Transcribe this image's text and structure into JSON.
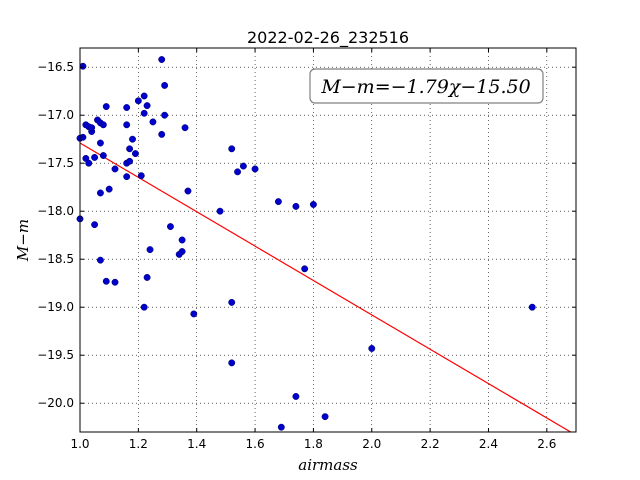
{
  "chart_data": {
    "type": "scatter",
    "title": "2022-02-26_232516",
    "xlabel": "airmass",
    "ylabel": "M−m",
    "xlim": [
      1.0,
      2.7
    ],
    "ylim": [
      -20.3,
      -16.3
    ],
    "xticks": [
      1.0,
      1.2,
      1.4,
      1.6,
      1.8,
      2.0,
      2.2,
      2.4,
      2.6
    ],
    "xtick_labels": [
      "1.0",
      "1.2",
      "1.4",
      "1.6",
      "1.8",
      "2.0",
      "2.2",
      "2.4",
      "2.6"
    ],
    "yticks": [
      -16.5,
      -17.0,
      -17.5,
      -18.0,
      -18.5,
      -19.0,
      -19.5,
      -20.0
    ],
    "ytick_labels": [
      "−16.5",
      "−17.0",
      "−17.5",
      "−18.0",
      "−18.5",
      "−19.0",
      "−19.5",
      "−20.0"
    ],
    "grid": true,
    "annotation": "M−m=−1.79χ−15.50",
    "fit": {
      "slope": -1.79,
      "intercept": -15.5,
      "color": "#ff0000"
    },
    "point_color": "#0000cc",
    "points": [
      [
        1.01,
        -16.49
      ],
      [
        1.0,
        -18.08
      ],
      [
        1.01,
        -17.23
      ],
      [
        1.0,
        -17.24
      ],
      [
        1.02,
        -17.1
      ],
      [
        1.03,
        -17.12
      ],
      [
        1.04,
        -17.17
      ],
      [
        1.04,
        -17.13
      ],
      [
        1.02,
        -17.45
      ],
      [
        1.03,
        -17.5
      ],
      [
        1.05,
        -17.44
      ],
      [
        1.05,
        -18.14
      ],
      [
        1.06,
        -17.05
      ],
      [
        1.07,
        -17.08
      ],
      [
        1.08,
        -17.1
      ],
      [
        1.07,
        -17.29
      ],
      [
        1.08,
        -17.42
      ],
      [
        1.07,
        -17.81
      ],
      [
        1.1,
        -17.77
      ],
      [
        1.12,
        -17.56
      ],
      [
        1.09,
        -16.91
      ],
      [
        1.07,
        -18.51
      ],
      [
        1.09,
        -18.73
      ],
      [
        1.12,
        -18.74
      ],
      [
        1.16,
        -16.92
      ],
      [
        1.16,
        -17.1
      ],
      [
        1.18,
        -17.25
      ],
      [
        1.17,
        -17.35
      ],
      [
        1.19,
        -17.4
      ],
      [
        1.16,
        -17.5
      ],
      [
        1.17,
        -17.48
      ],
      [
        1.16,
        -17.64
      ],
      [
        1.2,
        -16.85
      ],
      [
        1.22,
        -16.8
      ],
      [
        1.23,
        -16.9
      ],
      [
        1.22,
        -16.98
      ],
      [
        1.25,
        -17.07
      ],
      [
        1.21,
        -17.63
      ],
      [
        1.28,
        -16.42
      ],
      [
        1.29,
        -16.69
      ],
      [
        1.29,
        -17.0
      ],
      [
        1.28,
        -17.2
      ],
      [
        1.36,
        -17.13
      ],
      [
        1.37,
        -17.79
      ],
      [
        1.31,
        -18.16
      ],
      [
        1.35,
        -18.3
      ],
      [
        1.35,
        -18.42
      ],
      [
        1.34,
        -18.45
      ],
      [
        1.24,
        -18.4
      ],
      [
        1.23,
        -18.69
      ],
      [
        1.22,
        -19.0
      ],
      [
        1.39,
        -19.07
      ],
      [
        1.48,
        -18.0
      ],
      [
        1.52,
        -17.35
      ],
      [
        1.54,
        -17.59
      ],
      [
        1.56,
        -17.53
      ],
      [
        1.6,
        -17.56
      ],
      [
        1.52,
        -18.95
      ],
      [
        1.52,
        -19.58
      ],
      [
        1.68,
        -17.9
      ],
      [
        1.74,
        -17.95
      ],
      [
        1.8,
        -17.93
      ],
      [
        1.77,
        -18.6
      ],
      [
        1.74,
        -19.93
      ],
      [
        1.69,
        -20.25
      ],
      [
        1.84,
        -20.14
      ],
      [
        2.0,
        -19.43
      ],
      [
        2.55,
        -19.0
      ]
    ]
  }
}
